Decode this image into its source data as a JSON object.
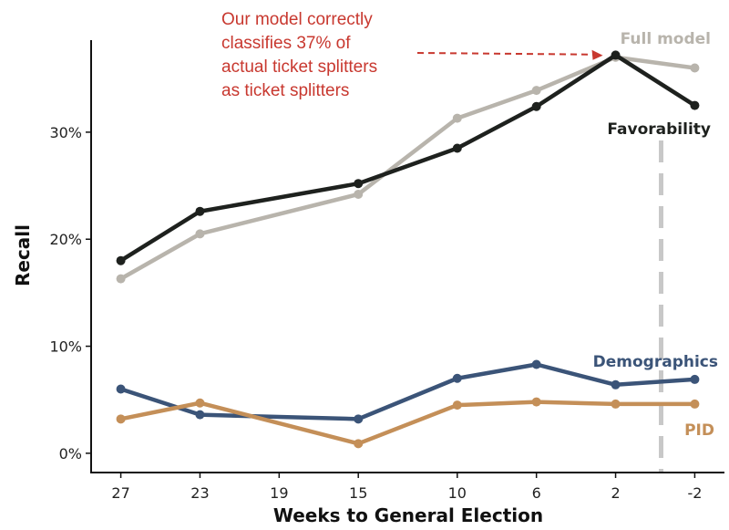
{
  "chart_data": {
    "type": "line",
    "xlabel": "Weeks to General Election",
    "ylabel": "Recall",
    "x": [
      27,
      23,
      19,
      15,
      10,
      6,
      2,
      -2
    ],
    "x_tick_labels": [
      "27",
      "23",
      "19",
      "15",
      "10",
      "6",
      "2",
      "-2"
    ],
    "y_ticks": [
      0,
      10,
      20,
      30
    ],
    "y_tick_labels": [
      "0%",
      "10%",
      "20%",
      "30%"
    ],
    "xlim": [
      28.5,
      -3.5
    ],
    "ylim": [
      -1.8,
      38.6
    ],
    "grid": false,
    "reference_line": {
      "x": -0.3,
      "style": "dashed",
      "color": "#c8c8c8"
    },
    "series": [
      {
        "name": "Full model",
        "color": "#b8b4ac",
        "x": [
          27,
          23,
          15,
          10,
          6,
          2,
          -2
        ],
        "values": [
          16.3,
          20.5,
          24.2,
          31.3,
          33.9,
          37.0,
          36.0
        ]
      },
      {
        "name": "Favorability",
        "color": "#1e211e",
        "x": [
          27,
          23,
          15,
          10,
          6,
          2,
          -2
        ],
        "values": [
          18.0,
          22.6,
          25.2,
          28.5,
          32.4,
          37.2,
          32.5
        ]
      },
      {
        "name": "Demographics",
        "color": "#3b5478",
        "x": [
          27,
          23,
          15,
          10,
          6,
          2,
          -2
        ],
        "values": [
          6.0,
          3.6,
          3.2,
          7.0,
          8.3,
          6.4,
          6.9
        ]
      },
      {
        "name": "PID",
        "color": "#c48f58",
        "x": [
          27,
          23,
          15,
          10,
          6,
          2,
          -2
        ],
        "values": [
          3.2,
          4.7,
          0.9,
          4.5,
          4.8,
          4.6,
          4.6
        ]
      }
    ],
    "annotation": {
      "lines": [
        "Our model correctly",
        "classifies 37% of",
        "actual ticket splitters",
        "as ticket splitters"
      ],
      "color": "#c8382f",
      "points_to": {
        "x": 2,
        "y": 37.0
      }
    }
  }
}
